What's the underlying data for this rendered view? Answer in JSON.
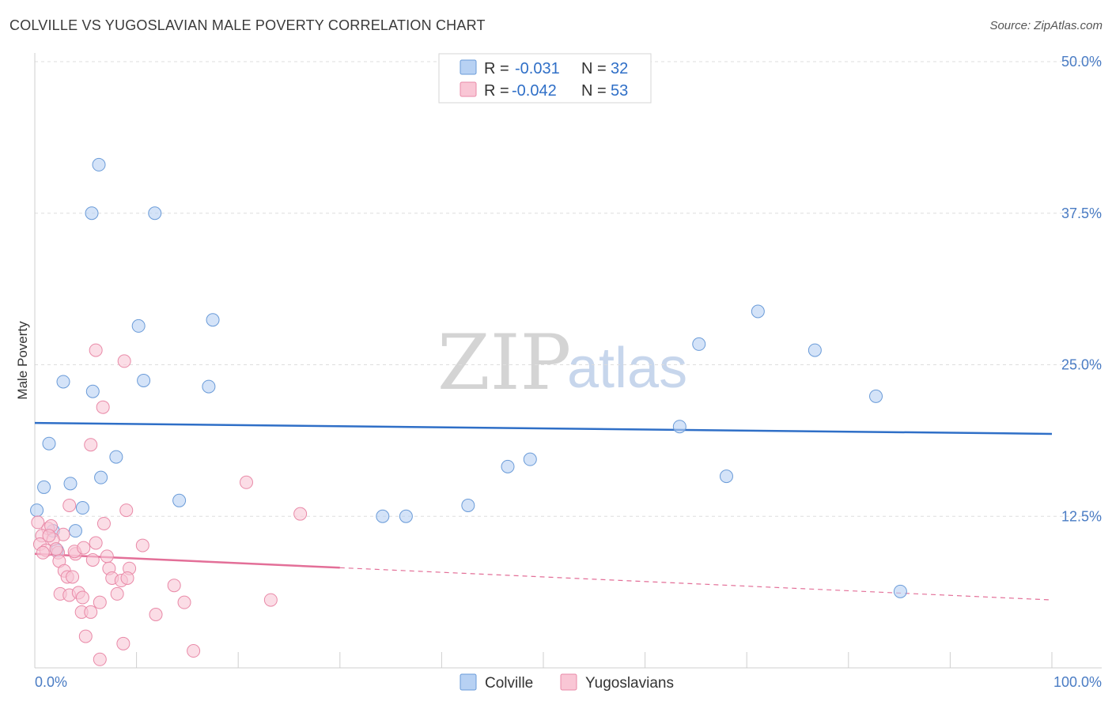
{
  "header": {
    "title": "COLVILLE VS YUGOSLAVIAN MALE POVERTY CORRELATION CHART",
    "source": "Source: ZipAtlas.com"
  },
  "watermark": {
    "zip": "ZIP",
    "atlas": "atlas"
  },
  "legend": {
    "series": [
      {
        "name": "Colville",
        "r_label": "R =",
        "r_value": "-0.031",
        "n_label": "N =",
        "n_value": "32",
        "fill": "#b7d1f3",
        "stroke": "#6a9bd8"
      },
      {
        "name": "Yugoslavians",
        "r_label": "R =",
        "r_value": "-0.042",
        "n_label": "N =",
        "n_value": "53",
        "fill": "#f9c6d5",
        "stroke": "#e98aa8"
      }
    ]
  },
  "chart_data": {
    "type": "scatter",
    "title": "COLVILLE VS YUGOSLAVIAN MALE POVERTY CORRELATION CHART",
    "xlabel": "",
    "ylabel": "Male Poverty",
    "xlim": [
      0,
      100
    ],
    "ylim": [
      0,
      50
    ],
    "x_tick_labels": [
      "0.0%",
      "100.0%"
    ],
    "y_ticks": [
      12.5,
      25.0,
      37.5,
      50.0
    ],
    "y_tick_labels": [
      "12.5%",
      "25.0%",
      "37.5%",
      "50.0%"
    ],
    "series": [
      {
        "name": "Colville",
        "color": "#6a9bd8",
        "fill": "#b7d1f3",
        "trend": {
          "x0": 0,
          "y0": 20.2,
          "x1": 100,
          "y1": 19.3,
          "solid_to": 100
        },
        "points": [
          [
            6.3,
            41.5
          ],
          [
            5.6,
            37.5
          ],
          [
            11.8,
            37.5
          ],
          [
            10.2,
            28.2
          ],
          [
            17.5,
            28.7
          ],
          [
            2.8,
            23.6
          ],
          [
            5.7,
            22.8
          ],
          [
            10.7,
            23.7
          ],
          [
            17.1,
            23.2
          ],
          [
            1.4,
            18.5
          ],
          [
            8.0,
            17.4
          ],
          [
            3.5,
            15.2
          ],
          [
            6.5,
            15.7
          ],
          [
            0.9,
            14.9
          ],
          [
            14.2,
            13.8
          ],
          [
            0.2,
            13.0
          ],
          [
            4.7,
            13.2
          ],
          [
            4.0,
            11.3
          ],
          [
            1.8,
            11.3
          ],
          [
            2.2,
            9.7
          ],
          [
            34.2,
            12.5
          ],
          [
            36.5,
            12.5
          ],
          [
            42.6,
            13.4
          ],
          [
            46.5,
            16.6
          ],
          [
            48.7,
            17.2
          ],
          [
            63.4,
            19.9
          ],
          [
            65.3,
            26.7
          ],
          [
            68.0,
            15.8
          ],
          [
            71.1,
            29.4
          ],
          [
            76.7,
            26.2
          ],
          [
            82.7,
            22.4
          ],
          [
            85.1,
            6.3
          ]
        ]
      },
      {
        "name": "Yugoslavians",
        "color": "#e98aa8",
        "fill": "#f9c6d5",
        "trend": {
          "x0": 0,
          "y0": 9.4,
          "x1": 100,
          "y1": 5.6,
          "solid_to": 30
        },
        "points": [
          [
            6.0,
            26.2
          ],
          [
            8.8,
            25.3
          ],
          [
            6.7,
            21.5
          ],
          [
            5.5,
            18.4
          ],
          [
            20.8,
            15.3
          ],
          [
            3.4,
            13.4
          ],
          [
            9.0,
            13.0
          ],
          [
            26.1,
            12.7
          ],
          [
            6.8,
            11.9
          ],
          [
            1.3,
            11.5
          ],
          [
            1.6,
            11.7
          ],
          [
            2.8,
            11.0
          ],
          [
            0.7,
            10.9
          ],
          [
            1.8,
            10.6
          ],
          [
            0.5,
            10.2
          ],
          [
            6.0,
            10.3
          ],
          [
            10.6,
            10.1
          ],
          [
            1.1,
            9.7
          ],
          [
            2.3,
            9.5
          ],
          [
            4.0,
            9.4
          ],
          [
            7.1,
            9.2
          ],
          [
            0.8,
            9.5
          ],
          [
            2.1,
            9.8
          ],
          [
            5.7,
            8.9
          ],
          [
            2.4,
            8.8
          ],
          [
            7.3,
            8.2
          ],
          [
            9.3,
            8.2
          ],
          [
            2.9,
            8.0
          ],
          [
            3.2,
            7.5
          ],
          [
            3.7,
            7.5
          ],
          [
            7.6,
            7.4
          ],
          [
            8.5,
            7.2
          ],
          [
            13.7,
            6.8
          ],
          [
            2.5,
            6.1
          ],
          [
            3.4,
            6.0
          ],
          [
            4.3,
            6.2
          ],
          [
            4.7,
            5.8
          ],
          [
            8.1,
            6.1
          ],
          [
            6.4,
            5.4
          ],
          [
            14.7,
            5.4
          ],
          [
            23.2,
            5.6
          ],
          [
            4.6,
            4.6
          ],
          [
            5.5,
            4.6
          ],
          [
            11.9,
            4.4
          ],
          [
            5.0,
            2.6
          ],
          [
            8.7,
            2.0
          ],
          [
            15.6,
            1.4
          ],
          [
            6.4,
            0.7
          ],
          [
            0.3,
            12.0
          ],
          [
            1.4,
            10.9
          ],
          [
            3.9,
            9.6
          ],
          [
            4.8,
            9.9
          ],
          [
            9.1,
            7.4
          ]
        ]
      }
    ]
  }
}
